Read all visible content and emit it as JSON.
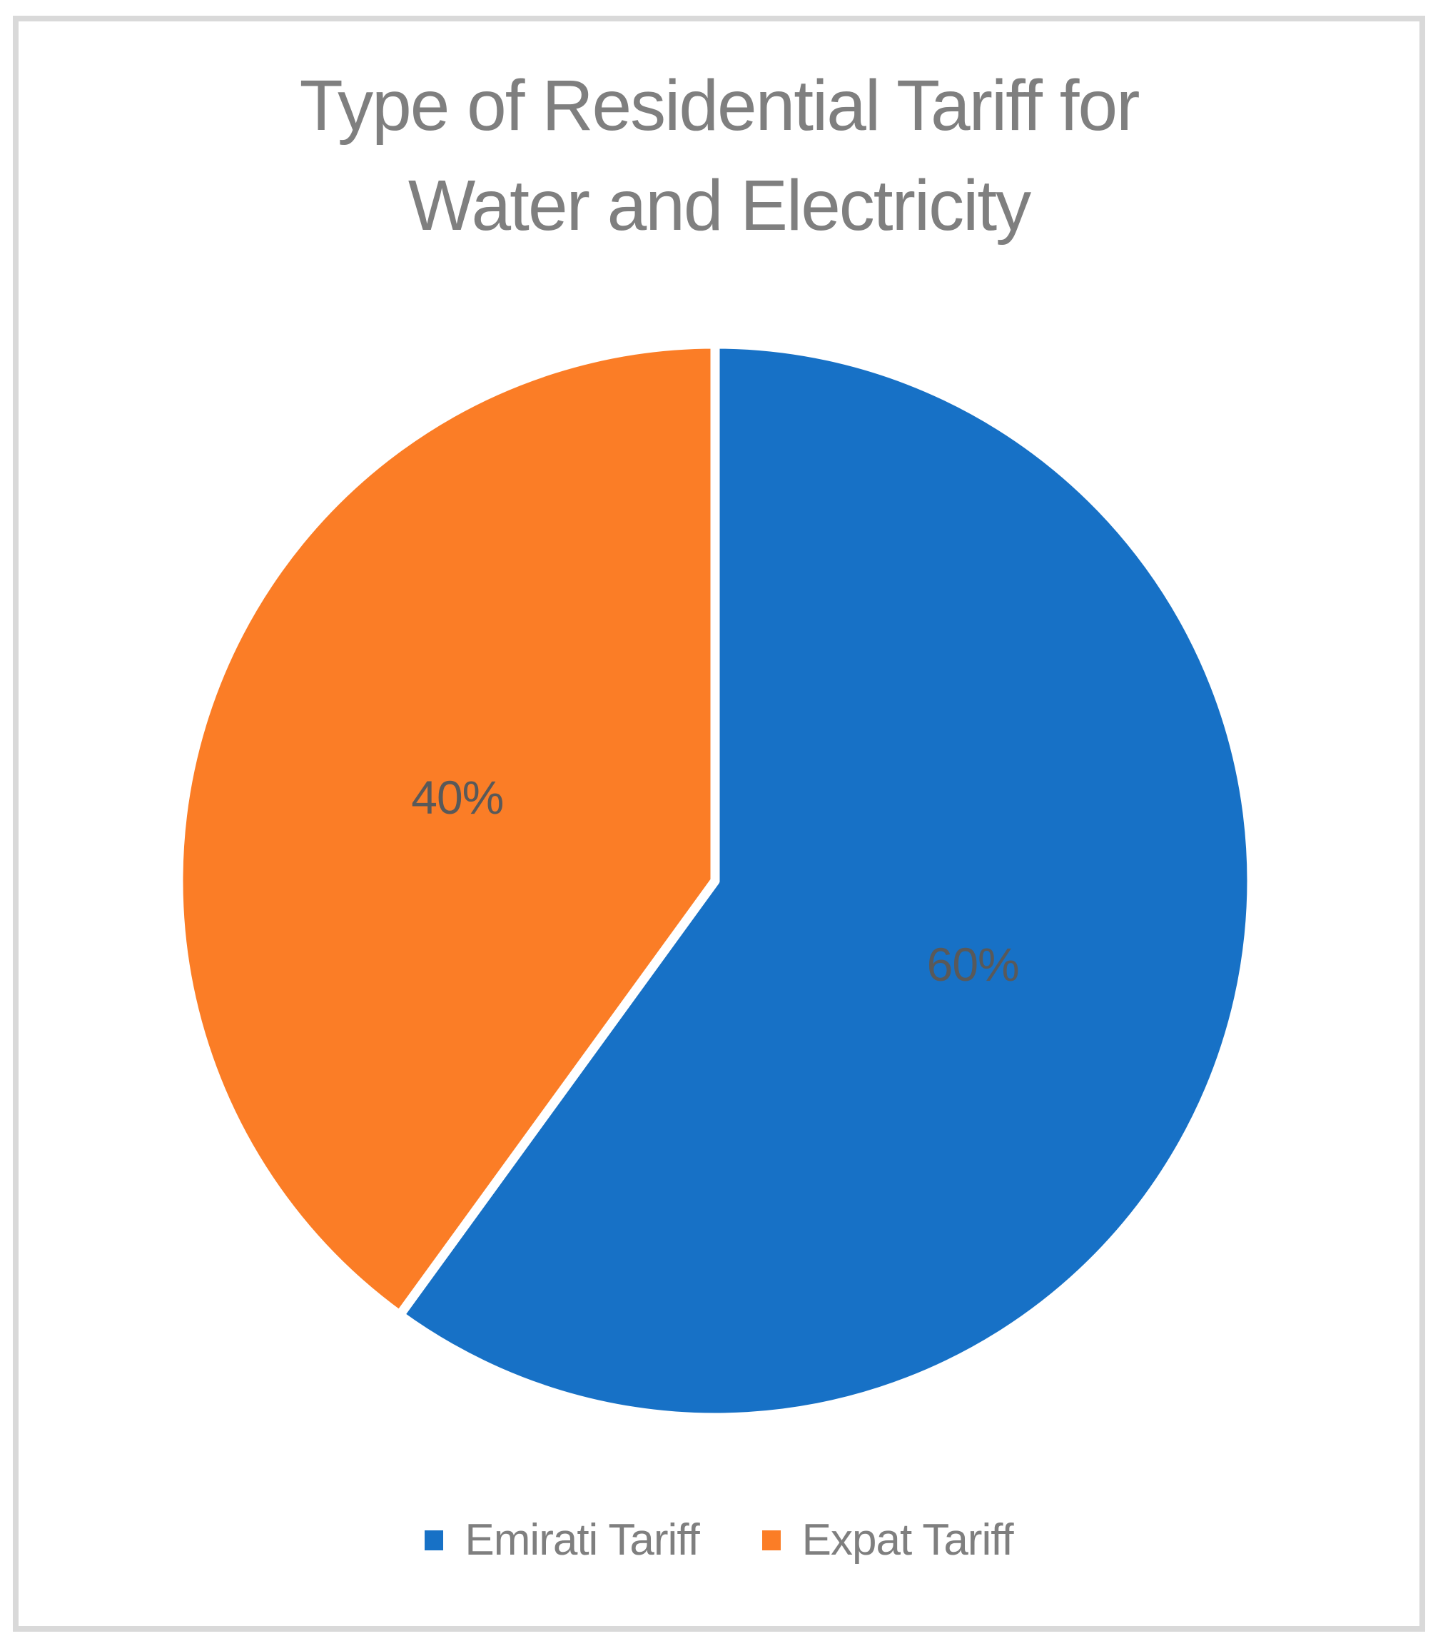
{
  "chart_data": {
    "type": "pie",
    "title": "Type of Residential Tariff for Water and Electricity",
    "title_lines": [
      "Type of Residential Tariff for",
      "Water and Electricity"
    ],
    "series": [
      {
        "name": "Emirati Tariff",
        "value": 60,
        "label": "60%",
        "color": "#1771C6"
      },
      {
        "name": "Expat Tariff",
        "value": 40,
        "label": "40%",
        "color": "#FB7D26"
      }
    ],
    "start_angle_deg": 0,
    "direction": "clockwise",
    "legend_position": "bottom",
    "slice_border_color": "#FFFFFF",
    "label_color": "#595959",
    "title_color": "#7F7F7F",
    "legend_text_color": "#7F7F7F",
    "frame_border_color": "#D9D9D9",
    "background_color": "#FFFFFF"
  }
}
